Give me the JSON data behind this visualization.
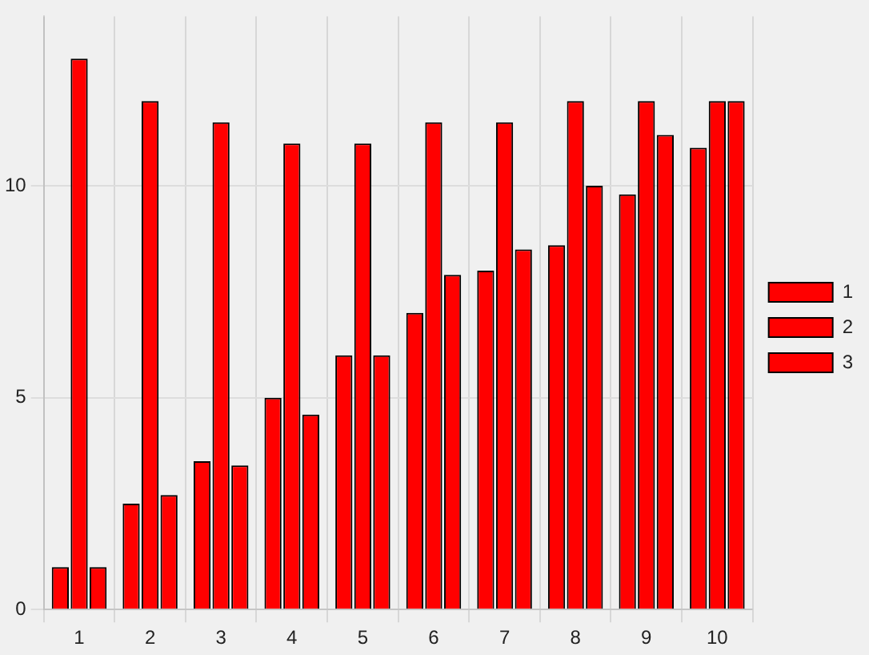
{
  "chart_data": {
    "type": "bar",
    "categories": [
      "1",
      "2",
      "3",
      "4",
      "5",
      "6",
      "7",
      "8",
      "9",
      "10"
    ],
    "series": [
      {
        "name": "1",
        "color": "#ff0000",
        "values": [
          1,
          2.5,
          3.5,
          5,
          6,
          7,
          8,
          8.6,
          9.8,
          10.9
        ]
      },
      {
        "name": "2",
        "color": "#ff0000",
        "values": [
          13,
          12,
          11.5,
          11,
          11,
          11.5,
          11.5,
          12,
          12,
          12
        ]
      },
      {
        "name": "3",
        "color": "#ff0000",
        "values": [
          1,
          2.7,
          3.4,
          4.6,
          6,
          7.9,
          8.5,
          10,
          11.2,
          12
        ]
      }
    ],
    "ylim": [
      0,
      14
    ],
    "yticks": [
      0,
      5,
      10
    ],
    "grid": true,
    "legend": "right"
  }
}
